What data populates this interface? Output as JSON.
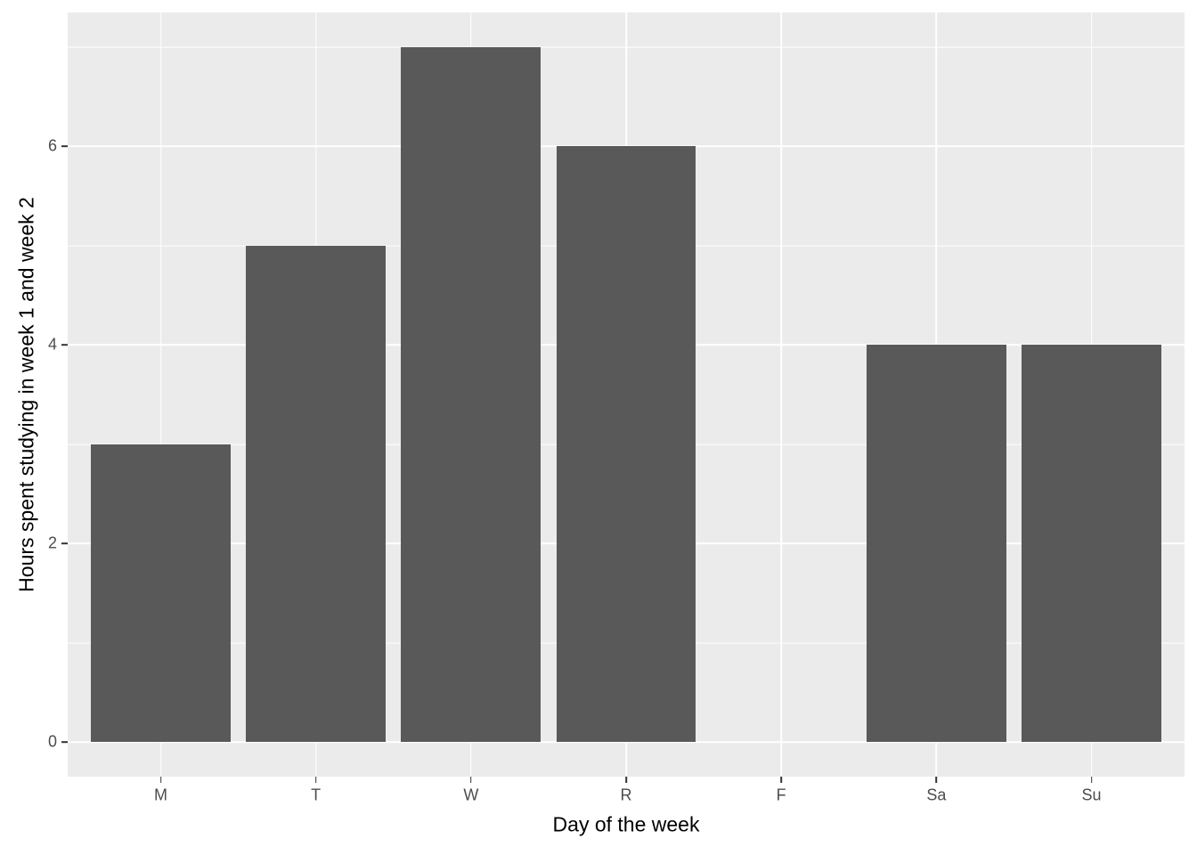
{
  "chart_data": {
    "type": "bar",
    "categories": [
      "M",
      "T",
      "W",
      "R",
      "F",
      "Sa",
      "Su"
    ],
    "values": [
      3,
      5,
      7,
      6,
      0,
      4,
      4
    ],
    "title": "",
    "xlabel": "Day of the week",
    "ylabel": "Hours spent studying in week 1 and week 2",
    "ylim": [
      -0.35,
      7.35
    ],
    "yticks": [
      0,
      2,
      4,
      6
    ],
    "yticks_minor": [
      1,
      3,
      5,
      7
    ],
    "grid": "horizontal major and minor white lines, vertical major white lines at each category",
    "legend": "none",
    "style": "ggplot2 theme_gray single series",
    "colors": {
      "background": "#FFFFFF",
      "panel_background": "#EBEBEB",
      "bar_fill": "#595959",
      "gridline": "#FFFFFF",
      "tick_label": "#4D4D4D",
      "axis_title": "#000000",
      "tick_mark": "#333333"
    }
  }
}
